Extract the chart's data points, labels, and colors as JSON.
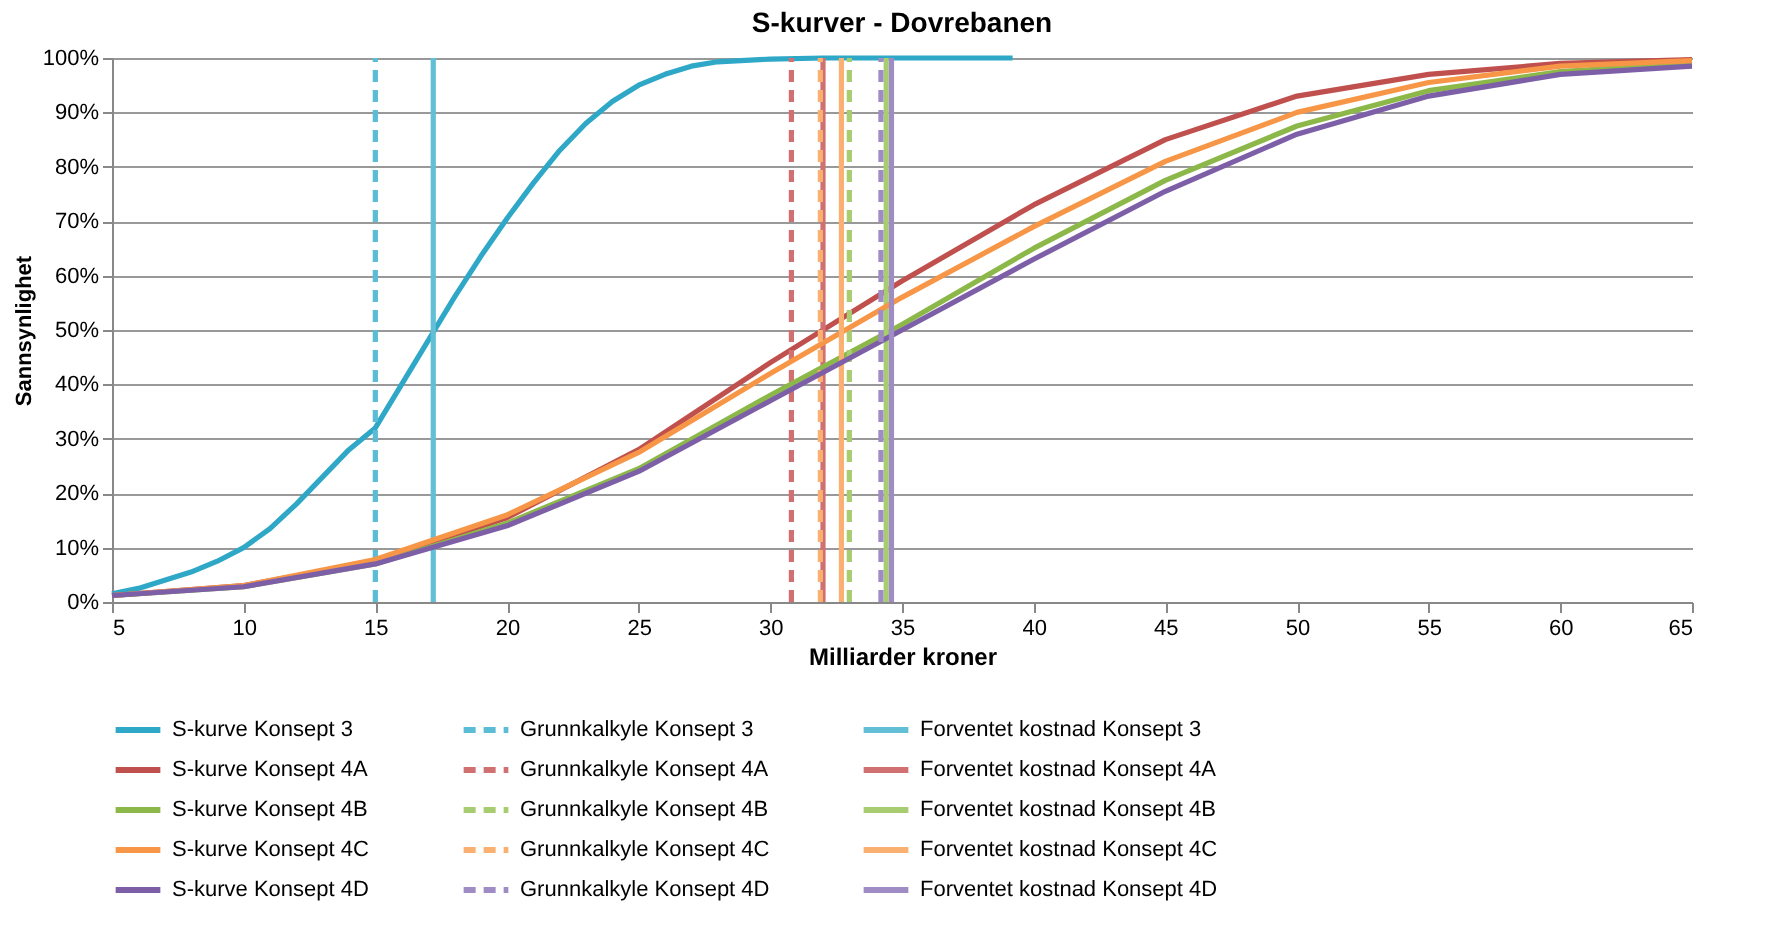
{
  "chart_data": {
    "type": "line",
    "title": "S-kurver - Dovrebanen",
    "xlabel": "Milliarder kroner",
    "ylabel": "Sannsynlighet",
    "xlim": [
      5,
      65
    ],
    "xticks": [
      5,
      10,
      15,
      20,
      25,
      30,
      35,
      40,
      45,
      50,
      55,
      60,
      65
    ],
    "ylim": [
      0,
      100
    ],
    "yticks": [
      {
        "value": 0,
        "label": "0%"
      },
      {
        "value": 10,
        "label": "10%"
      },
      {
        "value": 20,
        "label": "20%"
      },
      {
        "value": 30,
        "label": "30%"
      },
      {
        "value": 40,
        "label": "40%"
      },
      {
        "value": 50,
        "label": "50%"
      },
      {
        "value": 60,
        "label": "60%"
      },
      {
        "value": 70,
        "label": "70%"
      },
      {
        "value": 80,
        "label": "80%"
      },
      {
        "value": 90,
        "label": "90%"
      },
      {
        "value": 100,
        "label": "100%"
      }
    ],
    "grid": "y",
    "legend": "bottom",
    "marker": "none",
    "series": [
      {
        "name": "S-kurve Konsept 3",
        "color": "#2fa8c8",
        "line_style": "solid",
        "x": [
          5,
          6,
          7,
          8,
          9,
          10,
          11,
          12,
          13,
          14,
          15,
          16,
          17,
          18,
          19,
          20,
          21,
          22,
          23,
          24,
          25,
          26,
          27,
          28,
          30,
          32,
          39.2
        ],
        "values": [
          1.5,
          2.5,
          4,
          5.5,
          7.5,
          10,
          13.5,
          18,
          23,
          28,
          32,
          40,
          48,
          56,
          63.5,
          70.5,
          77,
          83,
          88,
          92,
          95,
          97,
          98.5,
          99.3,
          99.8,
          100,
          100
        ]
      },
      {
        "name": "Grunnkalkyle Konsept 3",
        "color": "#5bbcd6",
        "line_style": "dashed",
        "x": [
          15,
          15
        ],
        "values": [
          0,
          100
        ]
      },
      {
        "name": "Forventet kostnad Konsept 3",
        "color": "#62bfd5",
        "line_style": "solid",
        "x": [
          17.2,
          17.2
        ],
        "values": [
          0,
          100
        ]
      },
      {
        "name": "S-kurve Konsept 4A",
        "color": "#c0504d",
        "line_style": "solid",
        "x": [
          5,
          10,
          15,
          20,
          25,
          30,
          35,
          40,
          45,
          50,
          55,
          60,
          65
        ],
        "values": [
          1.2,
          3,
          7.5,
          15.5,
          28,
          44,
          59,
          73,
          85,
          93,
          97,
          99,
          99.7
        ]
      },
      {
        "name": "Grunnkalkyle Konsept 4A",
        "color": "#d07070",
        "line_style": "dashed",
        "x": [
          30.8,
          30.8
        ],
        "values": [
          0,
          100
        ]
      },
      {
        "name": "Forventet kostnad Konsept 4A",
        "color": "#d07070",
        "line_style": "solid",
        "x": [
          32.0,
          32.0
        ],
        "values": [
          0,
          100
        ]
      },
      {
        "name": "S-kurve Konsept 4B",
        "color": "#8cb84a",
        "line_style": "solid",
        "x": [
          5,
          10,
          15,
          20,
          25,
          30,
          35,
          40,
          45,
          50,
          55,
          60,
          65
        ],
        "values": [
          1.2,
          2.8,
          7,
          14.5,
          24.5,
          38,
          51,
          65,
          77.5,
          87.5,
          94,
          97.5,
          99
        ]
      },
      {
        "name": "Grunnkalkyle Konsept 4B",
        "color": "#a8cc70",
        "line_style": "dashed",
        "x": [
          33.0,
          33.0
        ],
        "values": [
          0,
          100
        ]
      },
      {
        "name": "Forventet kostnad Konsept 4B",
        "color": "#a8cc70",
        "line_style": "solid",
        "x": [
          34.4,
          34.4
        ],
        "values": [
          0,
          100
        ]
      },
      {
        "name": "S-kurve Konsept 4C",
        "color": "#f79646",
        "line_style": "solid",
        "x": [
          5,
          10,
          15,
          20,
          25,
          30,
          35,
          40,
          45,
          50,
          55,
          60,
          65
        ],
        "values": [
          1.2,
          3,
          7.8,
          16,
          27.5,
          42,
          56,
          69,
          81,
          90,
          95.5,
          98.5,
          99.5
        ]
      },
      {
        "name": "Grunnkalkyle Konsept 4C",
        "color": "#f9b070",
        "line_style": "dashed",
        "x": [
          31.9,
          31.9
        ],
        "values": [
          0,
          100
        ]
      },
      {
        "name": "Forventet kostnad Konsept 4C",
        "color": "#f9b070",
        "line_style": "solid",
        "x": [
          32.7,
          32.7
        ],
        "values": [
          0,
          100
        ]
      },
      {
        "name": "S-kurve Konsept 4D",
        "color": "#7d5fa8",
        "line_style": "solid",
        "x": [
          5,
          10,
          15,
          20,
          25,
          30,
          35,
          40,
          45,
          50,
          55,
          60,
          65
        ],
        "values": [
          1.2,
          2.8,
          7,
          14,
          24,
          37,
          50,
          63,
          75.5,
          86,
          93,
          97,
          98.5
        ]
      },
      {
        "name": "Grunnkalkyle Konsept 4D",
        "color": "#a08cc4",
        "line_style": "dashed",
        "x": [
          34.2,
          34.2
        ],
        "values": [
          0,
          100
        ]
      },
      {
        "name": "Forventet kostnad Konsept 4D",
        "color": "#a08cc4",
        "line_style": "solid",
        "x": [
          34.6,
          34.6
        ],
        "values": [
          0,
          100
        ]
      }
    ]
  }
}
